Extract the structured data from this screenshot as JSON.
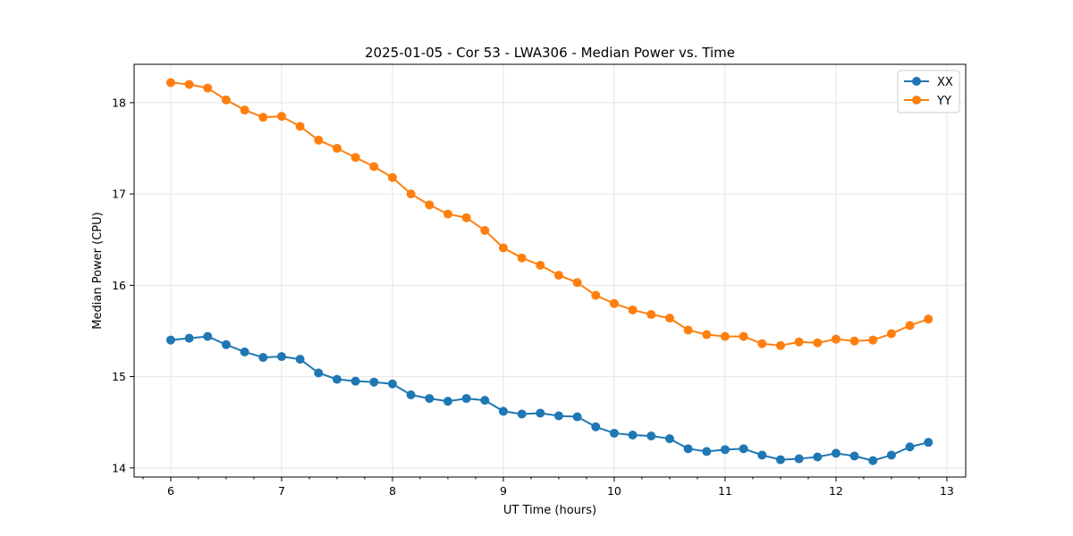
{
  "chart_data": {
    "type": "line",
    "title": "2025-01-05 - Cor 53 - LWA306 - Median Power vs. Time",
    "xlabel": "UT Time (hours)",
    "ylabel": "Median Power (CPU)",
    "xlim": [
      5.67,
      13.17
    ],
    "ylim": [
      13.9,
      18.42
    ],
    "xticks": [
      6,
      7,
      8,
      9,
      10,
      11,
      12,
      13
    ],
    "xtick_labels": [
      "6",
      "7",
      "8",
      "9",
      "10",
      "11",
      "12",
      "13"
    ],
    "yticks": [
      14,
      15,
      16,
      17,
      18
    ],
    "ytick_labels": [
      "14",
      "15",
      "16",
      "17",
      "18"
    ],
    "grid": true,
    "legend_position": "top-right",
    "x": [
      6.0,
      6.1667,
      6.3333,
      6.5,
      6.6667,
      6.8333,
      7.0,
      7.1667,
      7.3333,
      7.5,
      7.6667,
      7.8333,
      8.0,
      8.1667,
      8.3333,
      8.5,
      8.6667,
      8.8333,
      9.0,
      9.1667,
      9.3333,
      9.5,
      9.6667,
      9.8333,
      10.0,
      10.1667,
      10.3333,
      10.5,
      10.6667,
      10.8333,
      11.0,
      11.1667,
      11.3333,
      11.5,
      11.6667,
      11.8333,
      12.0,
      12.1667,
      12.3333,
      12.5,
      12.6667,
      12.8333
    ],
    "series": [
      {
        "name": "XX",
        "color": "#1f77b4",
        "values": [
          15.4,
          15.42,
          15.44,
          15.35,
          15.27,
          15.21,
          15.22,
          15.19,
          15.04,
          14.97,
          14.95,
          14.94,
          14.92,
          14.8,
          14.76,
          14.73,
          14.76,
          14.74,
          14.62,
          14.59,
          14.6,
          14.57,
          14.56,
          14.45,
          14.38,
          14.36,
          14.35,
          14.32,
          14.21,
          14.18,
          14.2,
          14.21,
          14.14,
          14.09,
          14.1,
          14.12,
          14.16,
          14.13,
          14.08,
          14.14,
          14.23,
          14.28
        ]
      },
      {
        "name": "YY",
        "color": "#ff7f0e",
        "values": [
          18.22,
          18.2,
          18.16,
          18.03,
          17.92,
          17.84,
          17.85,
          17.74,
          17.59,
          17.5,
          17.4,
          17.3,
          17.18,
          17.0,
          16.88,
          16.78,
          16.74,
          16.6,
          16.41,
          16.3,
          16.22,
          16.11,
          16.03,
          15.89,
          15.8,
          15.73,
          15.68,
          15.64,
          15.51,
          15.46,
          15.44,
          15.44,
          15.36,
          15.34,
          15.38,
          15.37,
          15.41,
          15.39,
          15.4,
          15.47,
          15.56,
          15.63
        ]
      }
    ]
  }
}
